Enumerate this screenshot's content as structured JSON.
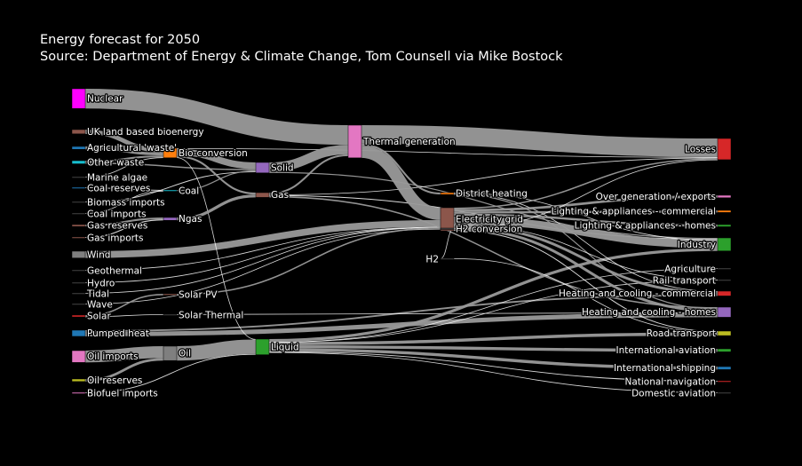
{
  "title": "Energy forecast for 2050",
  "subtitle": "Source: Department of Energy & Climate Change, Tom Counsell via Mike Bostock",
  "link_color": "#9a9a9a",
  "nodes": [
    {
      "id": "nuclear",
      "label": "Nuclear",
      "color": "#ff00ff"
    },
    {
      "id": "uk-bio",
      "label": "UK land based bioenergy",
      "color": "#8c564b"
    },
    {
      "id": "agri",
      "label": "Agricultural 'waste'",
      "color": "#1f77b4"
    },
    {
      "id": "other-waste",
      "label": "Other waste",
      "color": "#17becf"
    },
    {
      "id": "algae",
      "label": "Marine algae",
      "color": "#444444"
    },
    {
      "id": "coal-res",
      "label": "Coal reserves",
      "color": "#1f77b4"
    },
    {
      "id": "bio-imp",
      "label": "Biomass imports",
      "color": "#444444"
    },
    {
      "id": "coal-imp",
      "label": "Coal imports",
      "color": "#444444"
    },
    {
      "id": "gas-res",
      "label": "Gas reserves",
      "color": "#8c564b"
    },
    {
      "id": "gas-imp",
      "label": "Gas imports",
      "color": "#8c564b"
    },
    {
      "id": "wind",
      "label": "Wind",
      "color": "#7f7f7f"
    },
    {
      "id": "geo",
      "label": "Geothermal",
      "color": "#444444"
    },
    {
      "id": "hydro",
      "label": "Hydro",
      "color": "#444444"
    },
    {
      "id": "tidal",
      "label": "Tidal",
      "color": "#444444"
    },
    {
      "id": "wave",
      "label": "Wave",
      "color": "#444444"
    },
    {
      "id": "solar",
      "label": "Solar",
      "color": "#d62728"
    },
    {
      "id": "pumped",
      "label": "Pumped heat",
      "color": "#1f77b4"
    },
    {
      "id": "oil-imp",
      "label": "Oil imports",
      "color": "#e377c2"
    },
    {
      "id": "oil-res",
      "label": "Oil reserves",
      "color": "#bcbd22"
    },
    {
      "id": "biofuel",
      "label": "Biofuel imports",
      "color": "#e377c2"
    },
    {
      "id": "bioconv",
      "label": "Bio-conversion",
      "color": "#ff7f0e"
    },
    {
      "id": "coal",
      "label": "Coal",
      "color": "#17becf"
    },
    {
      "id": "ngas",
      "label": "Ngas",
      "color": "#9467bd"
    },
    {
      "id": "solarpv",
      "label": "Solar PV",
      "color": "#8c564b"
    },
    {
      "id": "solarth",
      "label": "Solar Thermal",
      "color": "#444444"
    },
    {
      "id": "oil",
      "label": "Oil",
      "color": "#7f7f7f"
    },
    {
      "id": "solid",
      "label": "Solid",
      "color": "#9467bd"
    },
    {
      "id": "gas",
      "label": "Gas",
      "color": "#8c564b"
    },
    {
      "id": "liquid",
      "label": "Liquid",
      "color": "#2ca02c"
    },
    {
      "id": "thermal",
      "label": "Thermal generation",
      "color": "#e377c2"
    },
    {
      "id": "district",
      "label": "District heating",
      "color": "#ff7f0e"
    },
    {
      "id": "grid",
      "label": "Electricity grid",
      "color": "#8c564b"
    },
    {
      "id": "h2conv",
      "label": "H2 conversion",
      "color": "#444444"
    },
    {
      "id": "h2",
      "label": "H2",
      "color": "#444444"
    },
    {
      "id": "losses",
      "label": "Losses",
      "color": "#d62728"
    },
    {
      "id": "overgen",
      "label": "Over generation / exports",
      "color": "#e377c2"
    },
    {
      "id": "light-com",
      "label": "Lighting & appliances - commercial",
      "color": "#ff7f0e"
    },
    {
      "id": "light-home",
      "label": "Lighting & appliances - homes",
      "color": "#2ca02c"
    },
    {
      "id": "industry",
      "label": "Industry",
      "color": "#2ca02c"
    },
    {
      "id": "agriculture",
      "label": "Agriculture",
      "color": "#444444"
    },
    {
      "id": "rail",
      "label": "Rail transport",
      "color": "#444444"
    },
    {
      "id": "heat-com",
      "label": "Heating and cooling - commercial",
      "color": "#d62728"
    },
    {
      "id": "heat-home",
      "label": "Heating and cooling - homes",
      "color": "#9467bd"
    },
    {
      "id": "road",
      "label": "Road transport",
      "color": "#bcbd22"
    },
    {
      "id": "intl-av",
      "label": "International aviation",
      "color": "#2ca02c"
    },
    {
      "id": "intl-ship",
      "label": "International shipping",
      "color": "#1f77b4"
    },
    {
      "id": "nat-nav",
      "label": "National navigation",
      "color": "#d62728"
    },
    {
      "id": "dom-av",
      "label": "Domestic aviation",
      "color": "#444444"
    }
  ],
  "links": [
    {
      "source": "nuclear",
      "target": "thermal",
      "value": 839
    },
    {
      "source": "uk-bio",
      "target": "bioconv",
      "value": 182
    },
    {
      "source": "agri",
      "target": "bioconv",
      "value": 124
    },
    {
      "source": "other-waste",
      "target": "bioconv",
      "value": 78
    },
    {
      "source": "other-waste",
      "target": "solid",
      "value": 56
    },
    {
      "source": "algae",
      "target": "bioconv",
      "value": 4
    },
    {
      "source": "coal-res",
      "target": "coal",
      "value": 35
    },
    {
      "source": "bio-imp",
      "target": "solid",
      "value": 35
    },
    {
      "source": "coal-imp",
      "target": "coal",
      "value": 11
    },
    {
      "source": "gas-res",
      "target": "ngas",
      "value": 82
    },
    {
      "source": "gas-imp",
      "target": "ngas",
      "value": 40
    },
    {
      "source": "wind",
      "target": "grid",
      "value": 289
    },
    {
      "source": "geo",
      "target": "grid",
      "value": 7
    },
    {
      "source": "hydro",
      "target": "grid",
      "value": 6
    },
    {
      "source": "tidal",
      "target": "grid",
      "value": 9
    },
    {
      "source": "wave",
      "target": "grid",
      "value": 19
    },
    {
      "source": "solar",
      "target": "solarpv",
      "value": 59
    },
    {
      "source": "solar",
      "target": "solarth",
      "value": 19
    },
    {
      "source": "pumped",
      "target": "heat-home",
      "value": 193
    },
    {
      "source": "pumped",
      "target": "heat-com",
      "value": 70
    },
    {
      "source": "oil-imp",
      "target": "oil",
      "value": 504
    },
    {
      "source": "oil-res",
      "target": "oil",
      "value": 107
    },
    {
      "source": "biofuel",
      "target": "liquid",
      "value": 35
    },
    {
      "source": "bioconv",
      "target": "solid",
      "value": 280
    },
    {
      "source": "bioconv",
      "target": "gas",
      "value": 81
    },
    {
      "source": "bioconv",
      "target": "losses",
      "value": 26
    },
    {
      "source": "bioconv",
      "target": "liquid",
      "value": 20
    },
    {
      "source": "coal",
      "target": "solid",
      "value": 46
    },
    {
      "source": "ngas",
      "target": "gas",
      "value": 122
    },
    {
      "source": "solarpv",
      "target": "grid",
      "value": 59
    },
    {
      "source": "solarth",
      "target": "heat-home",
      "value": 19
    },
    {
      "source": "oil",
      "target": "liquid",
      "value": 611
    },
    {
      "source": "solid",
      "target": "thermal",
      "value": 400
    },
    {
      "source": "solid",
      "target": "industry",
      "value": 46
    },
    {
      "source": "gas",
      "target": "thermal",
      "value": 78
    },
    {
      "source": "gas",
      "target": "heat-home",
      "value": 60
    },
    {
      "source": "gas",
      "target": "industry",
      "value": 38
    },
    {
      "source": "gas",
      "target": "losses",
      "value": 27
    },
    {
      "source": "liquid",
      "target": "road",
      "value": 135
    },
    {
      "source": "liquid",
      "target": "intl-av",
      "value": 128
    },
    {
      "source": "liquid",
      "target": "industry",
      "value": 121
    },
    {
      "source": "liquid",
      "target": "intl-ship",
      "value": 128
    },
    {
      "source": "liquid",
      "target": "nat-nav",
      "value": 34
    },
    {
      "source": "liquid",
      "target": "dom-av",
      "value": 14
    },
    {
      "source": "liquid",
      "target": "agriculture",
      "value": 4
    },
    {
      "source": "liquid",
      "target": "rail",
      "value": 3
    },
    {
      "source": "thermal",
      "target": "losses",
      "value": 787
    },
    {
      "source": "thermal",
      "target": "grid",
      "value": 525
    },
    {
      "source": "thermal",
      "target": "district",
      "value": 79
    },
    {
      "source": "district",
      "target": "industry",
      "value": 10
    },
    {
      "source": "district",
      "target": "heat-com",
      "value": 22
    },
    {
      "source": "district",
      "target": "heat-home",
      "value": 46
    },
    {
      "source": "grid",
      "target": "overgen",
      "value": 104
    },
    {
      "source": "grid",
      "target": "light-com",
      "value": 90
    },
    {
      "source": "grid",
      "target": "light-home",
      "value": 93
    },
    {
      "source": "grid",
      "target": "industry",
      "value": 342
    },
    {
      "source": "grid",
      "target": "h2conv",
      "value": 27
    },
    {
      "source": "grid",
      "target": "heat-com",
      "value": 113
    },
    {
      "source": "grid",
      "target": "heat-home",
      "value": 113
    },
    {
      "source": "grid",
      "target": "rail",
      "value": 7
    },
    {
      "source": "grid",
      "target": "road",
      "value": 37
    },
    {
      "source": "grid",
      "target": "losses",
      "value": 56
    },
    {
      "source": "h2conv",
      "target": "h2",
      "value": 20
    },
    {
      "source": "h2conv",
      "target": "losses",
      "value": 7
    },
    {
      "source": "h2",
      "target": "road",
      "value": 20
    }
  ]
}
